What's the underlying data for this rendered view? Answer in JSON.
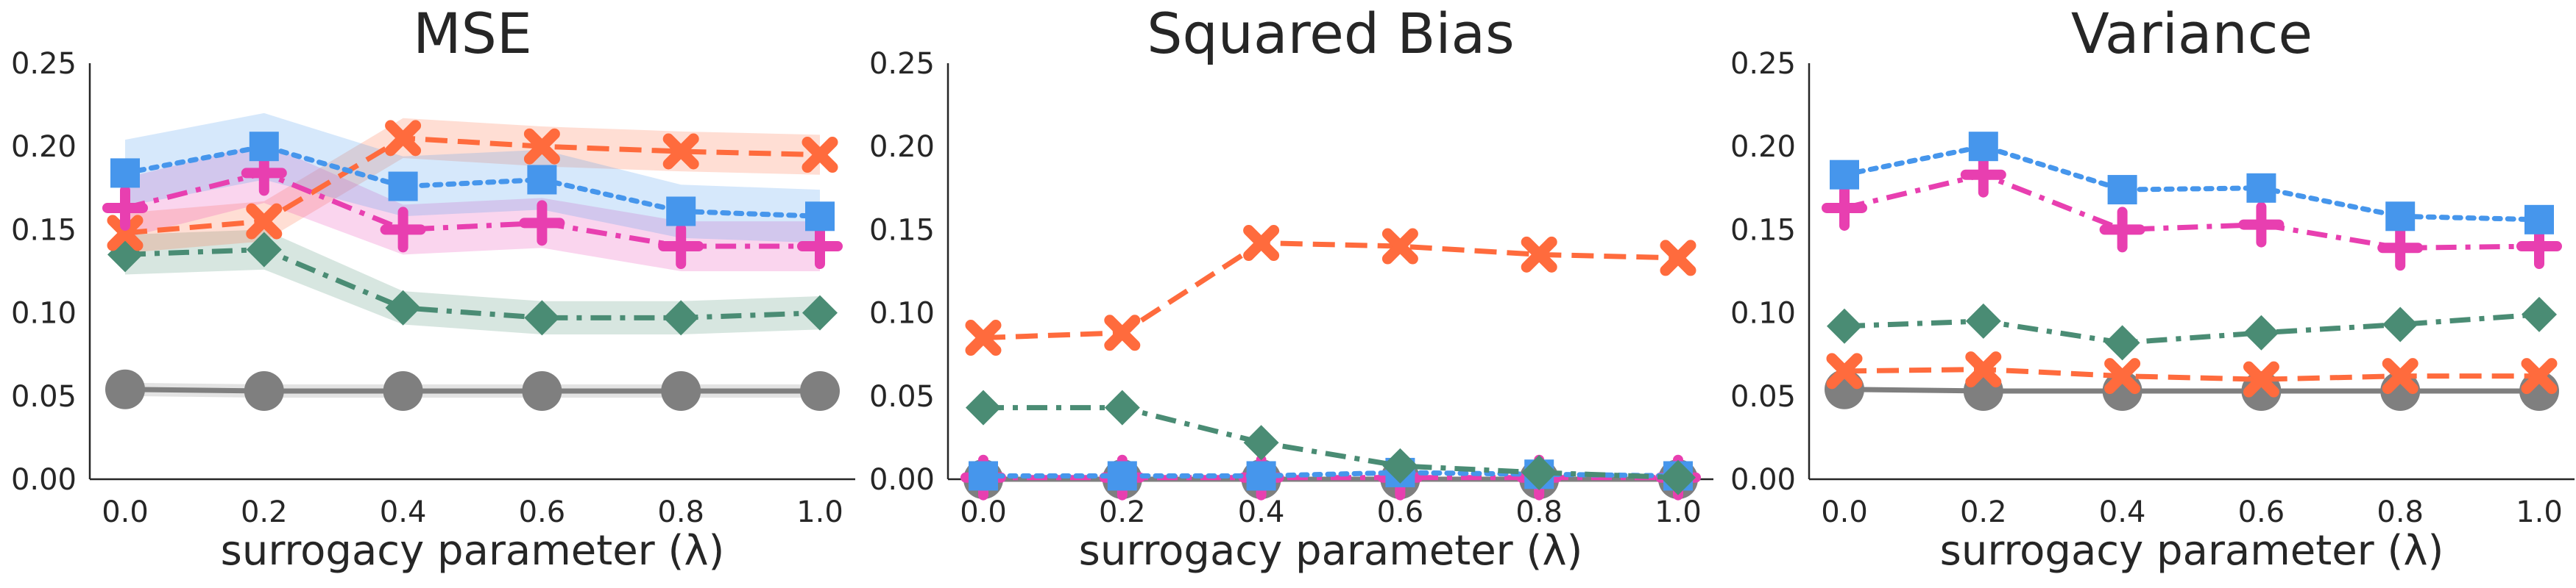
{
  "chart_data": [
    {
      "type": "line",
      "title": "MSE",
      "xlabel": "surrogacy parameter (λ)",
      "ylabel": "",
      "x": [
        0.0,
        0.2,
        0.4,
        0.6,
        0.8,
        1.0
      ],
      "xticks": [
        "0.0",
        "0.2",
        "0.4",
        "0.6",
        "0.8",
        "1.0"
      ],
      "ylim": [
        0,
        0.25
      ],
      "yticks": [
        "0.00",
        "0.05",
        "0.10",
        "0.15",
        "0.20",
        "0.25"
      ],
      "grid": false,
      "series": [
        {
          "color": "#7f7f7f",
          "marker": "circle",
          "dash": "solid",
          "values": [
            0.054,
            0.053,
            0.053,
            0.053,
            0.053,
            0.053
          ],
          "band": [
            0.004,
            0.004,
            0.004,
            0.004,
            0.004,
            0.004
          ]
        },
        {
          "color": "#4a8c74",
          "marker": "diamond",
          "dash": "dashdot",
          "values": [
            0.135,
            0.138,
            0.103,
            0.097,
            0.097,
            0.1
          ],
          "band": [
            0.012,
            0.012,
            0.01,
            0.01,
            0.01,
            0.01
          ]
        },
        {
          "color": "#ff6b3d",
          "marker": "x",
          "dash": "dashed",
          "values": [
            0.148,
            0.155,
            0.205,
            0.2,
            0.197,
            0.195
          ],
          "band": [
            0.012,
            0.012,
            0.012,
            0.012,
            0.012,
            0.012
          ]
        },
        {
          "color": "#e83fb0",
          "marker": "plus",
          "dash": "dashdot",
          "values": [
            0.163,
            0.184,
            0.15,
            0.154,
            0.14,
            0.14
          ],
          "band": [
            0.018,
            0.018,
            0.015,
            0.015,
            0.015,
            0.015
          ]
        },
        {
          "color": "#4696ec",
          "marker": "square",
          "dash": "dotted",
          "values": [
            0.184,
            0.2,
            0.176,
            0.18,
            0.161,
            0.158
          ],
          "band": [
            0.02,
            0.02,
            0.018,
            0.018,
            0.016,
            0.016
          ]
        }
      ]
    },
    {
      "type": "line",
      "title": "Squared Bias",
      "xlabel": "surrogacy parameter (λ)",
      "ylabel": "",
      "x": [
        0.0,
        0.2,
        0.4,
        0.6,
        0.8,
        1.0
      ],
      "xticks": [
        "0.0",
        "0.2",
        "0.4",
        "0.6",
        "0.8",
        "1.0"
      ],
      "ylim": [
        0,
        0.25
      ],
      "yticks": [
        "0.00",
        "0.05",
        "0.10",
        "0.15",
        "0.20",
        "0.25"
      ],
      "grid": false,
      "series": [
        {
          "color": "#7f7f7f",
          "marker": "circle",
          "dash": "solid",
          "values": [
            0.0,
            0.0,
            0.0,
            0.0,
            0.0,
            0.0
          ]
        },
        {
          "color": "#e83fb0",
          "marker": "plus",
          "dash": "dashdot",
          "values": [
            0.001,
            0.001,
            0.001,
            0.001,
            0.001,
            0.001
          ]
        },
        {
          "color": "#4696ec",
          "marker": "square",
          "dash": "dotted",
          "values": [
            0.002,
            0.002,
            0.002,
            0.004,
            0.003,
            0.002
          ]
        },
        {
          "color": "#4a8c74",
          "marker": "diamond",
          "dash": "dashdot",
          "values": [
            0.043,
            0.043,
            0.022,
            0.008,
            0.004,
            0.001
          ]
        },
        {
          "color": "#ff6b3d",
          "marker": "x",
          "dash": "dashed",
          "values": [
            0.085,
            0.088,
            0.142,
            0.14,
            0.135,
            0.133
          ]
        }
      ]
    },
    {
      "type": "line",
      "title": "Variance",
      "xlabel": "surrogacy parameter (λ)",
      "ylabel": "",
      "x": [
        0.0,
        0.2,
        0.4,
        0.6,
        0.8,
        1.0
      ],
      "xticks": [
        "0.0",
        "0.2",
        "0.4",
        "0.6",
        "0.8",
        "1.0"
      ],
      "ylim": [
        0,
        0.25
      ],
      "yticks": [
        "0.00",
        "0.05",
        "0.10",
        "0.15",
        "0.20",
        "0.25"
      ],
      "grid": false,
      "series": [
        {
          "color": "#7f7f7f",
          "marker": "circle",
          "dash": "solid",
          "values": [
            0.054,
            0.053,
            0.053,
            0.053,
            0.053,
            0.053
          ]
        },
        {
          "color": "#ff6b3d",
          "marker": "x",
          "dash": "dashed",
          "values": [
            0.065,
            0.066,
            0.062,
            0.06,
            0.062,
            0.062
          ]
        },
        {
          "color": "#4a8c74",
          "marker": "diamond",
          "dash": "dashdot",
          "values": [
            0.092,
            0.095,
            0.082,
            0.088,
            0.093,
            0.099
          ]
        },
        {
          "color": "#e83fb0",
          "marker": "plus",
          "dash": "dashdot",
          "values": [
            0.163,
            0.183,
            0.15,
            0.153,
            0.139,
            0.14
          ]
        },
        {
          "color": "#4696ec",
          "marker": "square",
          "dash": "dotted",
          "values": [
            0.183,
            0.2,
            0.174,
            0.175,
            0.158,
            0.156
          ]
        }
      ]
    }
  ]
}
